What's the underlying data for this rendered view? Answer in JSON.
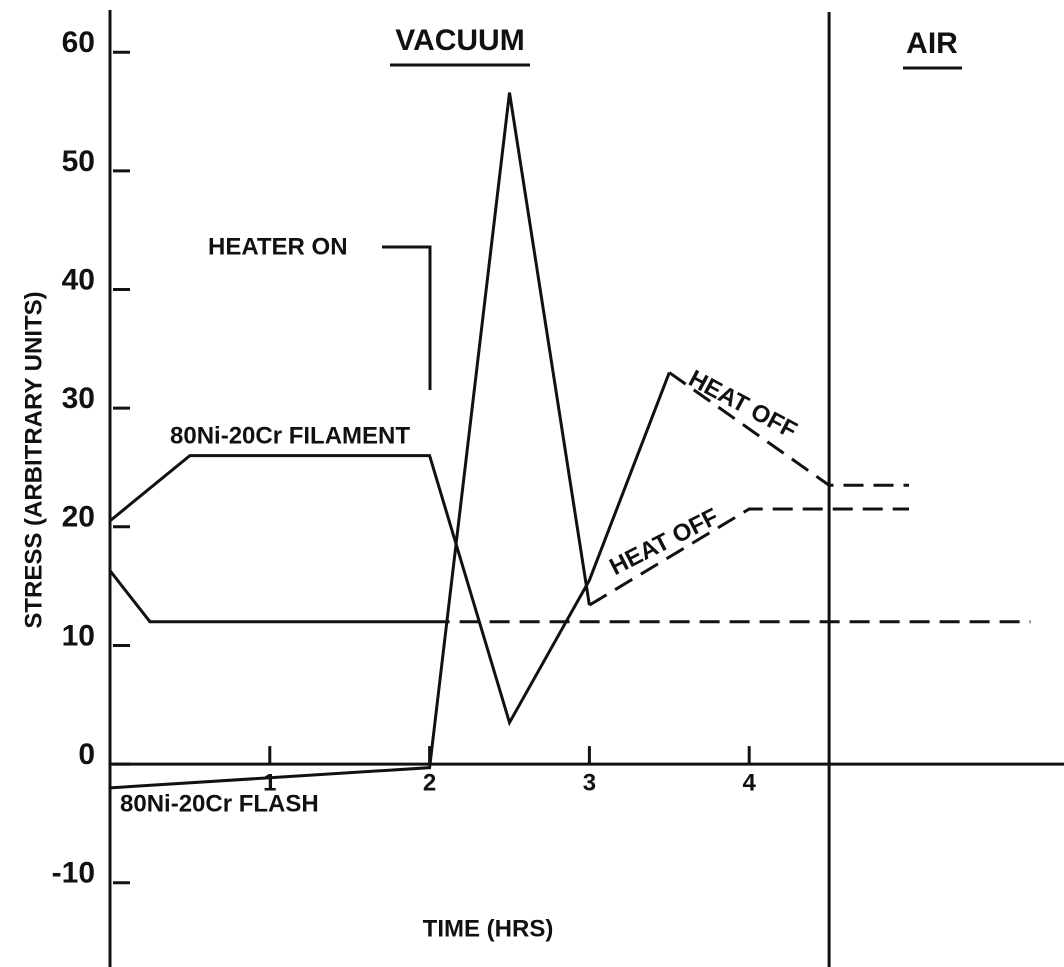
{
  "chart_data": {
    "type": "line",
    "xlabel": "TIME (HRS)",
    "ylabel": "STRESS (ARBITRARY UNITS)",
    "xlim": [
      0,
      5.97
    ],
    "ylim": [
      -17.1,
      64.4
    ],
    "xticks": [
      1,
      2,
      3,
      4
    ],
    "yticks": [
      -10,
      0,
      10,
      20,
      30,
      40,
      50,
      60
    ],
    "color": "#111111",
    "region_boundary": 4.5,
    "regions": [
      "VACUUM",
      "AIR"
    ],
    "annotations": [
      "HEATER ON",
      "80Ni-20Cr FILAMENT",
      "80Ni-20Cr FLASH",
      "HEAT OFF",
      "HEAT OFF"
    ],
    "series": [
      {
        "style": "solid",
        "x": [
          0,
          0.5,
          2,
          2.5,
          3,
          3.5
        ],
        "values": [
          20.5,
          26,
          26,
          3.5,
          15.5,
          33
        ]
      },
      {
        "style": "dashed",
        "x": [
          3.5,
          4.5,
          5
        ],
        "values": [
          33,
          23.5,
          23.5
        ]
      },
      {
        "style": "solid",
        "x": [
          0,
          2,
          2.5,
          3
        ],
        "values": [
          -2,
          -0.3,
          56.6,
          13.4
        ]
      },
      {
        "style": "dashed",
        "x": [
          3,
          4,
          5
        ],
        "values": [
          13.4,
          21.5,
          21.5
        ]
      },
      {
        "style": "solid",
        "x": [
          0,
          0.25,
          2
        ],
        "values": [
          16.3,
          12,
          12
        ]
      },
      {
        "style": "dashed",
        "x": [
          2,
          5.76
        ],
        "values": [
          12,
          12
        ]
      }
    ]
  }
}
